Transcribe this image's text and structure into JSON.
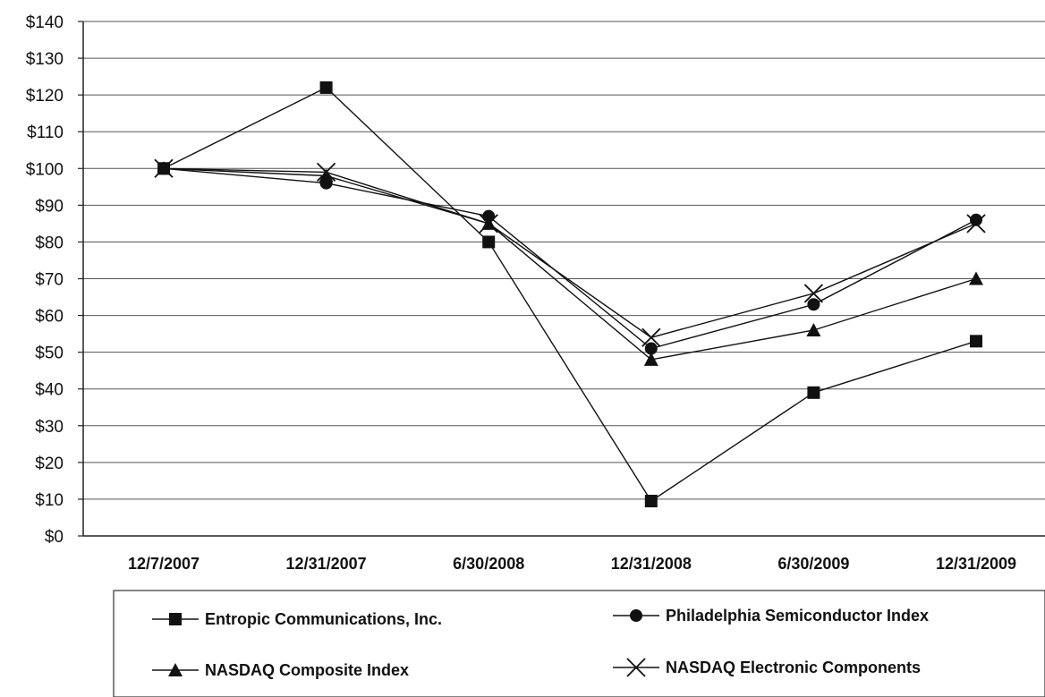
{
  "chart_data": {
    "type": "line",
    "title": "",
    "xlabel": "",
    "ylabel": "",
    "categories": [
      "12/7/2007",
      "12/31/2007",
      "6/30/2008",
      "12/31/2008",
      "6/30/2009",
      "12/31/2009"
    ],
    "ylim": [
      0,
      140
    ],
    "yticks": [
      0,
      10,
      20,
      30,
      40,
      50,
      60,
      70,
      80,
      90,
      100,
      110,
      120,
      130,
      140
    ],
    "ytick_labels": [
      "$0",
      "$10",
      "$20",
      "$30",
      "$40",
      "$50",
      "$60",
      "$70",
      "$80",
      "$90",
      "$100",
      "$110",
      "$120",
      "$130",
      "$140"
    ],
    "grid": true,
    "legend_position": "bottom",
    "series": [
      {
        "name": "Entropic Communications, Inc.",
        "marker": "square",
        "color": "#111111",
        "values": [
          100,
          122,
          80,
          9.5,
          39,
          53
        ]
      },
      {
        "name": "Philadelphia Semiconductor Index",
        "marker": "circle",
        "color": "#111111",
        "values": [
          100,
          96,
          87,
          51,
          63,
          86
        ]
      },
      {
        "name": "NASDAQ Composite Index",
        "marker": "triangle",
        "color": "#111111",
        "values": [
          100,
          98,
          85,
          48,
          56,
          70
        ]
      },
      {
        "name": "NASDAQ Electronic Components",
        "marker": "x",
        "color": "#111111",
        "values": [
          100,
          99,
          85,
          54,
          66,
          85
        ]
      }
    ]
  }
}
